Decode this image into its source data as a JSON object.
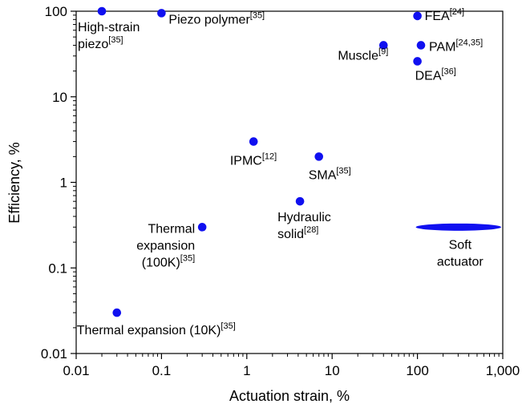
{
  "chart_data": {
    "type": "scatter",
    "xlabel": "Actuation strain, %",
    "ylabel": "Efficiency, %",
    "xscale": "log",
    "yscale": "log",
    "xlim": [
      0.01,
      1000
    ],
    "ylim": [
      0.01,
      100
    ],
    "xticks": [
      0.01,
      0.1,
      1,
      10,
      100,
      1000
    ],
    "xtick_labels": [
      "0.01",
      "0.1",
      "1",
      "10",
      "100",
      "1,000"
    ],
    "yticks": [
      0.01,
      0.1,
      1,
      10,
      100
    ],
    "ytick_labels": [
      "0.01",
      "0.1",
      "1",
      "10",
      "100"
    ],
    "grid": false,
    "marker_color": "#1010f0",
    "points": [
      {
        "x": 0.02,
        "y": 100,
        "label": [
          "High-strain",
          "piezo"
        ],
        "ref": "[35]"
      },
      {
        "x": 0.1,
        "y": 95,
        "label": [
          "Piezo polymer"
        ],
        "ref": "[35]"
      },
      {
        "x": 100,
        "y": 88,
        "label": [
          "FEA"
        ],
        "ref": "[24]"
      },
      {
        "x": 40,
        "y": 40,
        "label": [
          "Muscle"
        ],
        "ref": "[9]"
      },
      {
        "x": 110,
        "y": 40,
        "label": [
          "PAM"
        ],
        "ref": "[24,35]"
      },
      {
        "x": 100,
        "y": 26,
        "label": [
          "DEA"
        ],
        "ref": "[36]"
      },
      {
        "x": 1.2,
        "y": 3,
        "label": [
          "IPMC"
        ],
        "ref": "[12]"
      },
      {
        "x": 7,
        "y": 2,
        "label": [
          "SMA"
        ],
        "ref": "[35]"
      },
      {
        "x": 4.2,
        "y": 0.6,
        "label": [
          "Hydraulic",
          "solid"
        ],
        "ref": "[28]"
      },
      {
        "x": 0.3,
        "y": 0.3,
        "label": [
          "Thermal",
          "expansion",
          "(100K)"
        ],
        "ref": "[35]"
      },
      {
        "x": 0.03,
        "y": 0.03,
        "label": [
          "Thermal expansion (10K)"
        ],
        "ref": "[35]"
      }
    ],
    "regions": [
      {
        "label": [
          "Soft",
          "actuator"
        ],
        "x_range": [
          100,
          1000
        ],
        "y": 0.3
      }
    ]
  }
}
